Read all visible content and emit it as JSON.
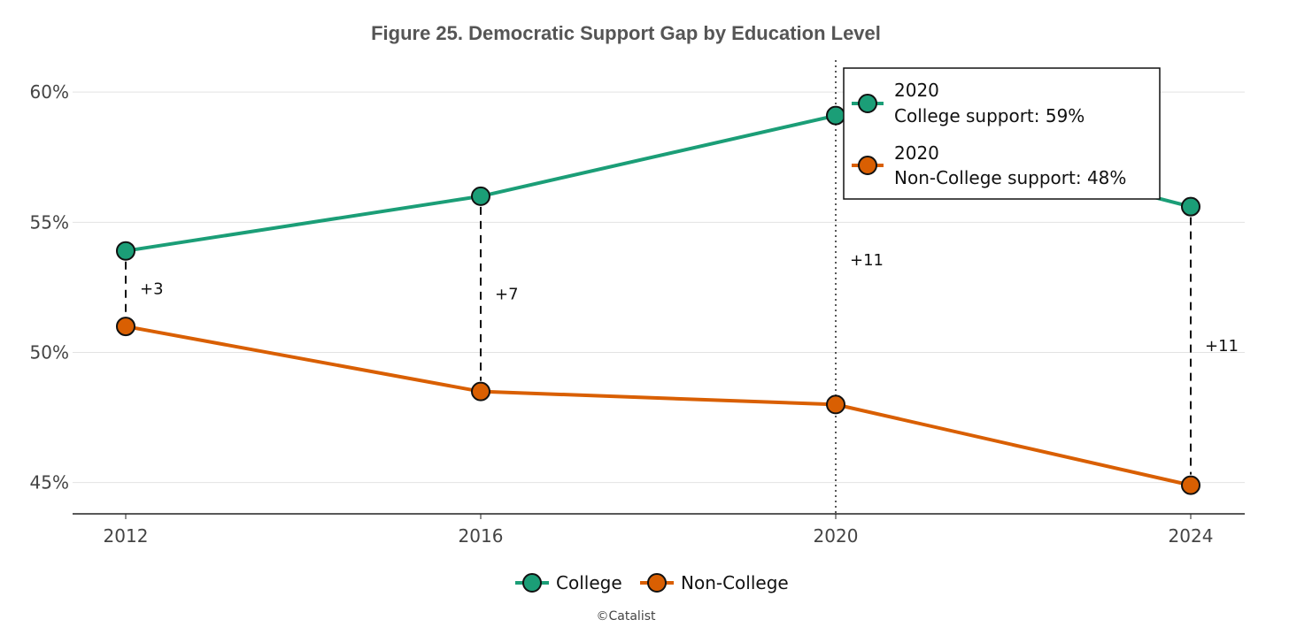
{
  "chart_data": {
    "type": "line",
    "title": "Figure 25. Democratic Support Gap by Education Level",
    "xlabel": "",
    "ylabel": "",
    "categories": [
      "2012",
      "2016",
      "2020",
      "2024"
    ],
    "ylim": [
      43.8,
      61.5
    ],
    "yticks": [
      45,
      50,
      55,
      60
    ],
    "ytick_labels": [
      "45%",
      "50%",
      "55%",
      "60%"
    ],
    "grid": true,
    "series": [
      {
        "name": "College",
        "color": "#1b9e77",
        "values": [
          53.9,
          56.0,
          59.1,
          55.6
        ]
      },
      {
        "name": "Non-College",
        "color": "#d95f02",
        "values": [
          51.0,
          48.5,
          48.0,
          44.9
        ]
      }
    ],
    "gaps": [
      "+3",
      "+7",
      "+11",
      "+11"
    ],
    "hover_year": "2020",
    "tooltip": {
      "college_year": "2020",
      "college_text": "College support: 59%",
      "noncollege_year": "2020",
      "noncollege_text": "Non-College support: 48%"
    },
    "legend": [
      "College",
      "Non-College"
    ],
    "legend_position": "bottom-center",
    "credit": "©Catalist"
  }
}
